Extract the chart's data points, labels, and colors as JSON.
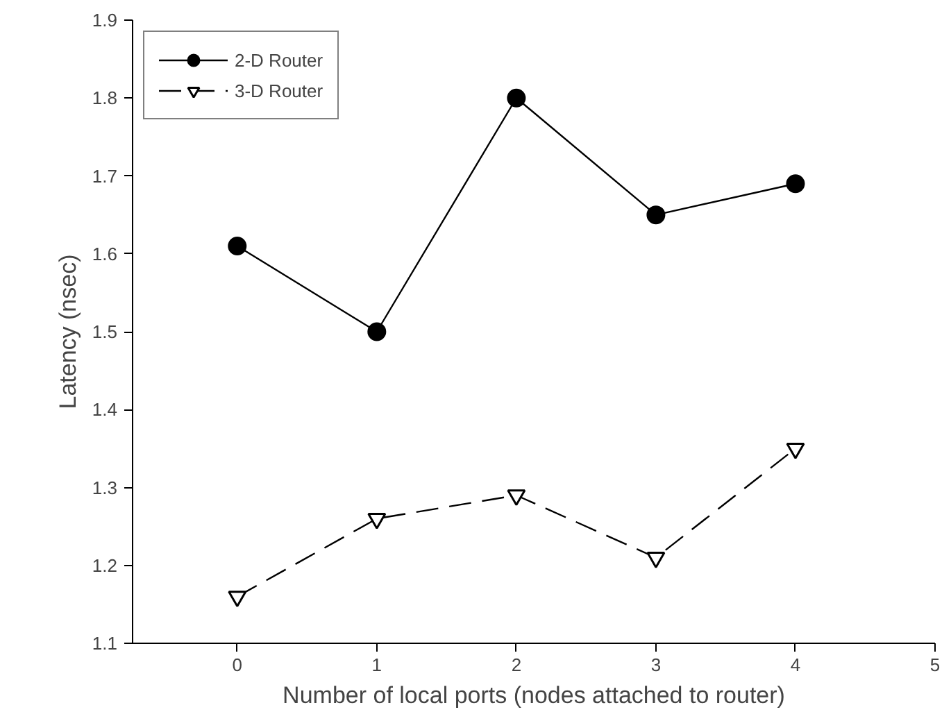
{
  "chart_data": {
    "type": "line",
    "xlabel": "Number of local ports (nodes attached to router)",
    "ylabel": "Latency (nsec)",
    "x": [
      0,
      1,
      2,
      3,
      4
    ],
    "series": [
      {
        "name": "2-D Router",
        "color": "#000000",
        "values": [
          1.61,
          1.5,
          1.8,
          1.65,
          1.69
        ],
        "marker": "circle",
        "line_style": "solid"
      },
      {
        "name": "3-D Router",
        "color": "#000000",
        "values": [
          1.16,
          1.26,
          1.29,
          1.21,
          1.35
        ],
        "marker": "triangle",
        "line_style": "dashed"
      }
    ],
    "xlim": [
      -0.75,
      5
    ],
    "xticks": [
      0,
      1,
      2,
      3,
      4,
      5
    ],
    "ylim": [
      1.1,
      1.9
    ],
    "yticks": [
      1.1,
      1.2,
      1.3,
      1.4,
      1.5,
      1.6,
      1.7,
      1.8,
      1.9
    ],
    "grid": false,
    "legend": "top left"
  }
}
